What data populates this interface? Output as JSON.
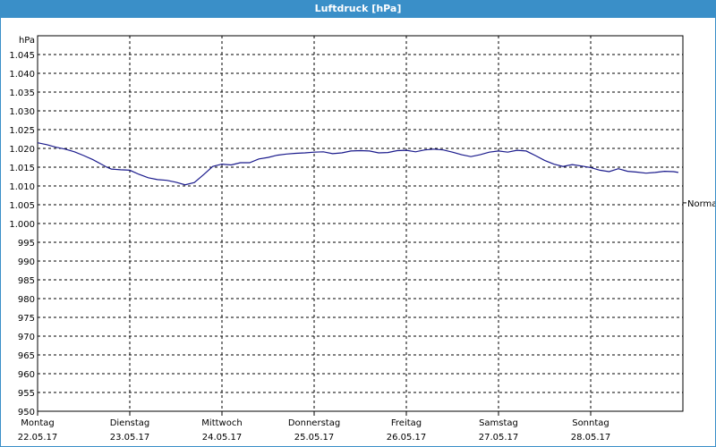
{
  "window": {
    "title": "Luftdruck [hPa]"
  },
  "chart_data": {
    "type": "line",
    "title": "Luftdruck [hPa]",
    "ylabel": "hPa",
    "ylim": [
      950,
      1050
    ],
    "yticks": [
      "950",
      "955",
      "960",
      "965",
      "970",
      "975",
      "980",
      "985",
      "990",
      "995",
      "1.000",
      "1.005",
      "1.010",
      "1.015",
      "1.020",
      "1.025",
      "1.030",
      "1.035",
      "1.040",
      "1.045"
    ],
    "xlim": [
      0,
      7
    ],
    "x_ticks": [
      {
        "day": "Montag",
        "date": "22.05.17"
      },
      {
        "day": "Dienstag",
        "date": "23.05.17"
      },
      {
        "day": "Mittwoch",
        "date": "24.05.17"
      },
      {
        "day": "Donnerstag",
        "date": "25.05.17"
      },
      {
        "day": "Freitag",
        "date": "26.05.17"
      },
      {
        "day": "Samstag",
        "date": "27.05.17"
      },
      {
        "day": "Sonntag",
        "date": "28.05.17"
      }
    ],
    "reference_label": "Normal",
    "reference_value": 1005.5,
    "grid": true,
    "colors": {
      "line": "#1a1a8c",
      "grid": "#000000",
      "titlebar": "#3a8fc8"
    },
    "series": [
      {
        "x": [
          0,
          0.1,
          0.2,
          0.3,
          0.4,
          0.5,
          0.6,
          0.7,
          0.75,
          0.8,
          0.9,
          1.0,
          1.1,
          1.2,
          1.3,
          1.4,
          1.5,
          1.6,
          1.7,
          1.8,
          1.9,
          2.0,
          2.1,
          2.2,
          2.3,
          2.4,
          2.5,
          2.6,
          2.7,
          2.8,
          2.9,
          3.0,
          3.1,
          3.2,
          3.3,
          3.4,
          3.5,
          3.6,
          3.7,
          3.8,
          3.9,
          4.0,
          4.1,
          4.2,
          4.3,
          4.4,
          4.5,
          4.6,
          4.7,
          4.8,
          4.9,
          5.0,
          5.1,
          5.2,
          5.3,
          5.4,
          5.5,
          5.6,
          5.7,
          5.8,
          5.9,
          6.0,
          6.1,
          6.2,
          6.3,
          6.4,
          6.5,
          6.6,
          6.7,
          6.8,
          6.9,
          6.95
        ],
        "values": [
          1021.5,
          1021,
          1020.3,
          1019.8,
          1019.1,
          1018.1,
          1017,
          1015.7,
          1015,
          1014.5,
          1014.3,
          1014.2,
          1013.1,
          1012.2,
          1011.7,
          1011.5,
          1011,
          1010.3,
          1010.9,
          1013,
          1015.2,
          1015.8,
          1015.6,
          1016.2,
          1016.2,
          1017.2,
          1017.6,
          1018.2,
          1018.5,
          1018.7,
          1018.8,
          1019,
          1019.1,
          1018.6,
          1018.8,
          1019.3,
          1019.4,
          1019.3,
          1018.8,
          1018.9,
          1019.4,
          1019.5,
          1019.1,
          1019.6,
          1019.8,
          1019.6,
          1019,
          1018.3,
          1017.8,
          1018.3,
          1019,
          1019.3,
          1019,
          1019.5,
          1019.3,
          1018.1,
          1016.8,
          1015.8,
          1015.2,
          1015.7,
          1015.3,
          1014.9,
          1014.2,
          1013.8,
          1014.6,
          1013.9,
          1013.7,
          1013.4,
          1013.6,
          1013.9,
          1013.8,
          1013.6
        ]
      }
    ]
  }
}
